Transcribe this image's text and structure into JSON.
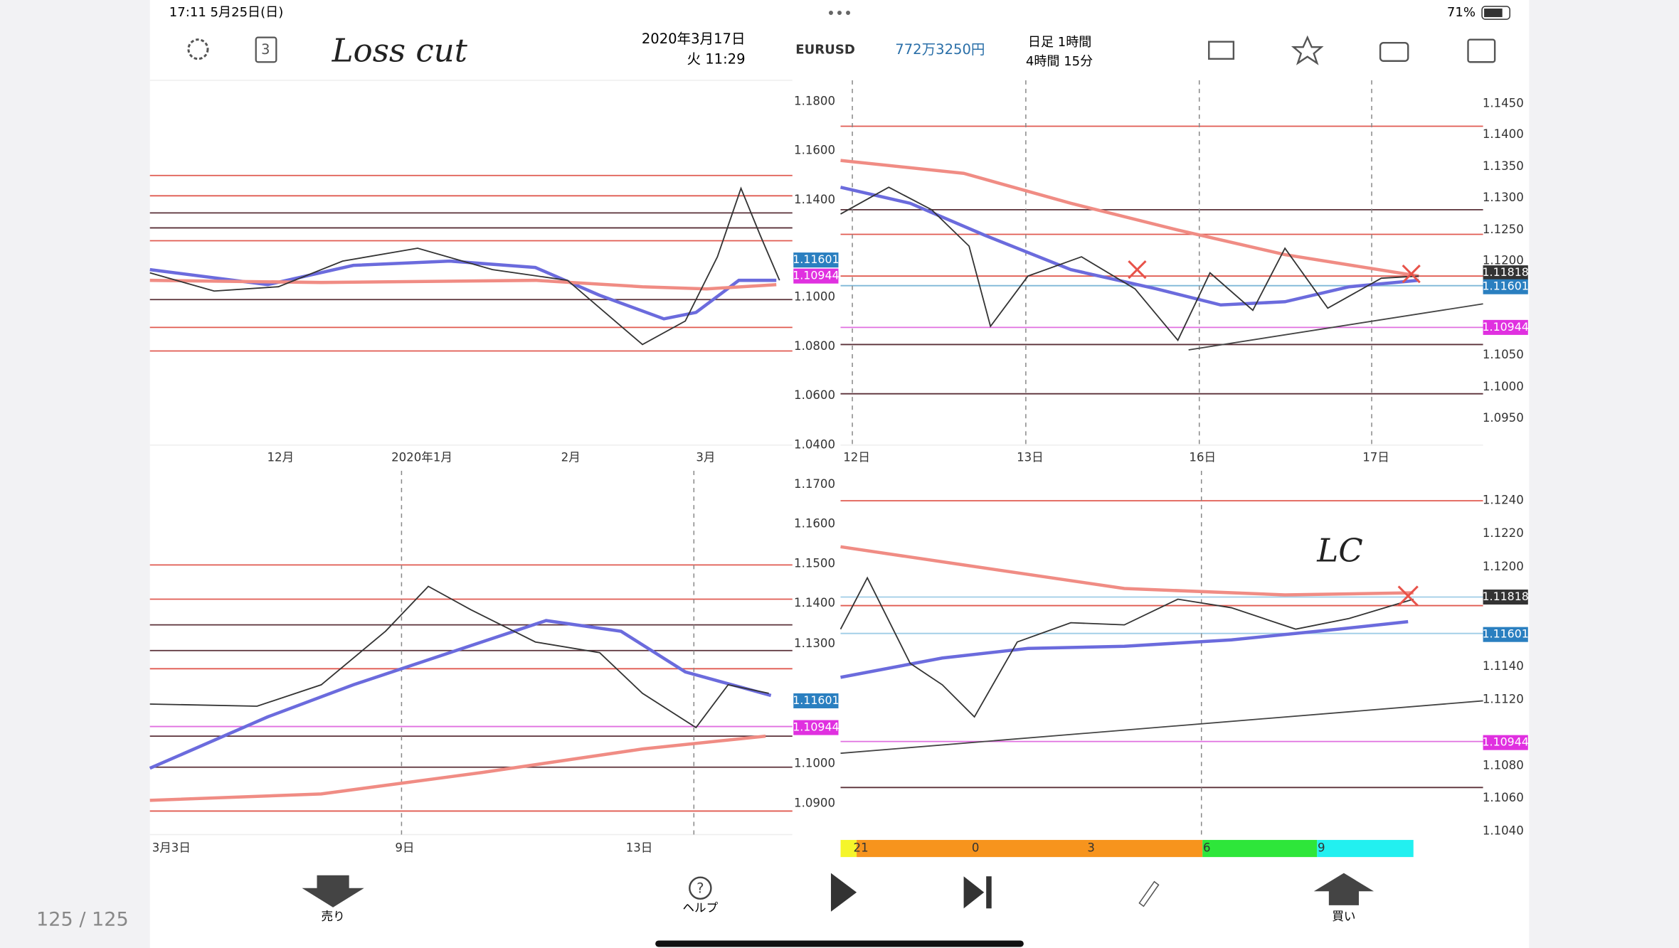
{
  "status_bar": {
    "time_date": "17:11  5月25日(日)",
    "battery": "71%"
  },
  "toolbar": {
    "layout_count": "3",
    "note": "Loss cut",
    "date": "2020年3月17日",
    "time": "火 11:29",
    "symbol": "EURUSD",
    "balance": "772万3250円",
    "timeframes_top": "日足  1時間",
    "timeframes_bottom": "4時間  15分"
  },
  "top_left": {
    "x_labels": [
      "12月",
      "2020年1月",
      "2月",
      "3月"
    ],
    "price_tags": [
      "1.11601",
      "1.10944"
    ]
  },
  "top_right": {
    "left_axis": [
      "1.1800",
      "1.1600",
      "1.1400",
      "1.1000",
      "1.0800",
      "1.0600",
      "1.0400"
    ],
    "right_axis": [
      "1.1450",
      "1.1400",
      "1.1350",
      "1.1300",
      "1.1250",
      "1.1200",
      "1.1050",
      "1.1000",
      "1.0950"
    ],
    "price_tags": [
      "1.11818",
      "1.11601",
      "1.10944"
    ],
    "x_labels": [
      "12日",
      "13日",
      "16日",
      "17日"
    ]
  },
  "bottom_left": {
    "x_labels": [
      "3月3日",
      "9日",
      "13日"
    ],
    "price_tags": [
      "1.11601",
      "1.10944"
    ]
  },
  "bottom_right": {
    "note": "LC",
    "left_axis": [
      "1.1700",
      "1.1600",
      "1.1500",
      "1.1400",
      "1.1300",
      "1.1000",
      "1.0900"
    ],
    "right_axis": [
      "1.1240",
      "1.1220",
      "1.1200",
      "1.1140",
      "1.1120",
      "1.1080",
      "1.1060",
      "1.1040"
    ],
    "price_tags": [
      "1.11818",
      "1.11601",
      "1.10944"
    ],
    "strength_bar": [
      "21",
      "0",
      "3",
      "6",
      "9"
    ]
  },
  "bottom_bar": {
    "sell": "売り",
    "help": "ヘルプ",
    "buy": "買い"
  },
  "page_counter": "125 / 125"
}
